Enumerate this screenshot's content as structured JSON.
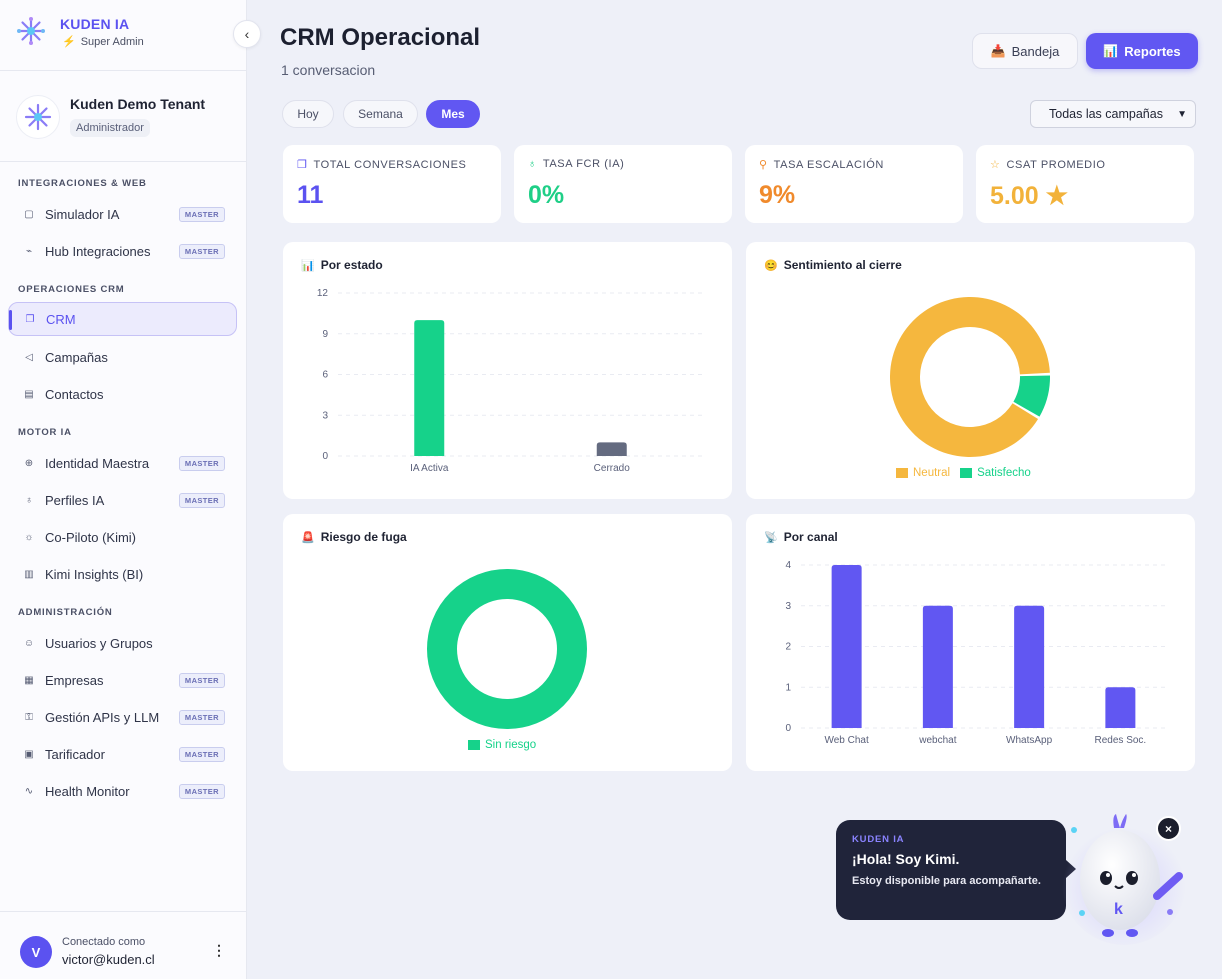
{
  "brand": {
    "name": "KUDEN IA",
    "role": "Super Admin"
  },
  "tenant": {
    "name": "Kuden Demo Tenant",
    "role": "Administrador"
  },
  "sidebar": {
    "sections": [
      {
        "title": "INTEGRACIONES & WEB"
      },
      {
        "title": "OPERACIONES CRM"
      },
      {
        "title": "MOTOR IA"
      },
      {
        "title": "ADMINISTRACIÓN"
      }
    ],
    "items": [
      {
        "label": "Simulador IA",
        "badge": "MASTER",
        "icon": "chat-icon"
      },
      {
        "label": "Hub Integraciones",
        "badge": "MASTER",
        "icon": "plug-icon"
      },
      {
        "label": "CRM",
        "badge": "",
        "icon": "conversations-icon"
      },
      {
        "label": "Campañas",
        "badge": "",
        "icon": "megaphone-icon"
      },
      {
        "label": "Contactos",
        "badge": "",
        "icon": "contact-book-icon"
      },
      {
        "label": "Identidad Maestra",
        "badge": "MASTER",
        "icon": "globe-icon"
      },
      {
        "label": "Perfiles IA",
        "badge": "MASTER",
        "icon": "badge-icon"
      },
      {
        "label": "Co-Piloto (Kimi)",
        "badge": "",
        "icon": "sun-icon"
      },
      {
        "label": "Kimi Insights (BI)",
        "badge": "",
        "icon": "bar-chart-icon"
      },
      {
        "label": "Usuarios y Grupos",
        "badge": "",
        "icon": "users-icon"
      },
      {
        "label": "Empresas",
        "badge": "MASTER",
        "icon": "building-icon"
      },
      {
        "label": "Gestión APIs y LLM",
        "badge": "MASTER",
        "icon": "key-icon"
      },
      {
        "label": "Tarificador",
        "badge": "MASTER",
        "icon": "receipt-icon"
      },
      {
        "label": "Health Monitor",
        "badge": "MASTER",
        "icon": "pulse-icon"
      }
    ]
  },
  "user": {
    "label": "Conectado como",
    "email": "victor@kuden.cl",
    "initial": "V"
  },
  "header": {
    "title": "CRM Operacional",
    "subtitle": "1 conversacion",
    "bandeja": "Bandeja",
    "reportes": "Reportes"
  },
  "filters": {
    "periods": [
      "Hoy",
      "Semana",
      "Mes"
    ],
    "active_period": "Mes",
    "campaign": "Todas las campañas"
  },
  "kpis": [
    {
      "label": "TOTAL CONVERSACIONES",
      "value": "11",
      "color": "#5b52f0",
      "icon": "conversations-icon"
    },
    {
      "label": "TASA FCR (IA)",
      "value": "0%",
      "color": "#1fcf87",
      "icon": "award-icon"
    },
    {
      "label": "TASA ESCALACIÓN",
      "value": "9%",
      "color": "#f08a2c",
      "icon": "escalate-icon"
    },
    {
      "label": "CSAT PROMEDIO",
      "value": "5.00 ★",
      "color": "#f2b23a",
      "icon": "star-icon"
    }
  ],
  "cards": {
    "estado": {
      "title": "Por estado",
      "icon": "bar-chart-icon"
    },
    "sentimiento": {
      "title": "Sentimiento al cierre",
      "icon": "smile-icon"
    },
    "riesgo": {
      "title": "Riesgo de fuga",
      "icon": "siren-icon"
    },
    "canal": {
      "title": "Por canal",
      "icon": "satellite-icon"
    }
  },
  "chart_data": [
    {
      "type": "bar",
      "title": "Por estado",
      "categories": [
        "IA Activa",
        "Cerrado"
      ],
      "values": [
        10,
        1
      ],
      "colors": [
        "#16d28a",
        "#646b80"
      ],
      "ylim": [
        0,
        12
      ],
      "yticks": [
        "0",
        "3",
        "6",
        "9",
        "12"
      ]
    },
    {
      "type": "pie",
      "title": "Sentimiento al cierre",
      "labels": [
        "Neutral",
        "Satisfecho"
      ],
      "values": [
        10,
        1
      ],
      "colors": [
        "#f5b73e",
        "#16d28a"
      ]
    },
    {
      "type": "pie",
      "title": "Riesgo de fuga",
      "labels": [
        "Sin riesgo"
      ],
      "values": [
        11
      ],
      "colors": [
        "#16d28a"
      ]
    },
    {
      "type": "bar",
      "title": "Por canal",
      "categories": [
        "Web Chat",
        "webchat",
        "WhatsApp",
        "Redes Soc."
      ],
      "values": [
        4,
        3,
        3,
        1
      ],
      "colors": [
        "#6157f2"
      ],
      "ylim": [
        0,
        4
      ],
      "yticks": [
        "0",
        "1",
        "2",
        "3",
        "4"
      ]
    }
  ],
  "kimi": {
    "brand": "KUDEN IA",
    "greeting": "¡Hola! Soy Kimi.",
    "message": "Estoy disponible para acompañarte.",
    "close": "×"
  }
}
